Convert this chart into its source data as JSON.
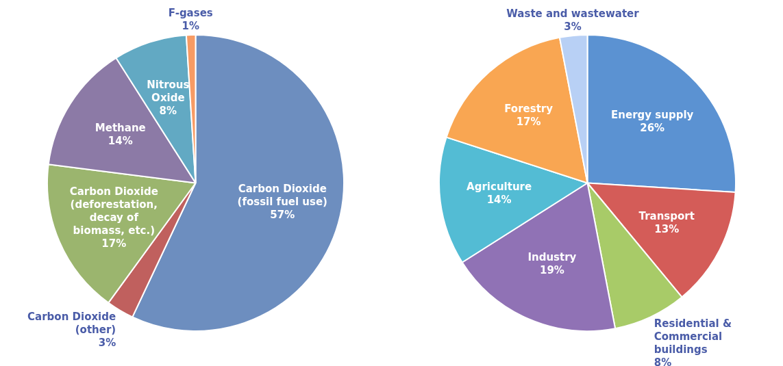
{
  "chart_data": [
    {
      "type": "pie",
      "categories": [
        "Carbon Dioxide (fossil fuel use)",
        "Carbon Dioxide (other)",
        "Carbon Dioxide (deforestation, decay of biomass, etc.)",
        "Methane",
        "Nitrous Oxide",
        "F-gases"
      ],
      "values": [
        57,
        3,
        17,
        14,
        8,
        1
      ],
      "value_labels": [
        "57%",
        "3%",
        "17%",
        "14%",
        "8%",
        "1%"
      ],
      "colors": [
        "#6d8ebf",
        "#c0605e",
        "#9bb56e",
        "#8c7aa6",
        "#62a9c3",
        "#f79b64"
      ],
      "legend": false
    },
    {
      "type": "pie",
      "categories": [
        "Energy supply",
        "Transport",
        "Residential & Commercial buildings",
        "Industry",
        "Agriculture",
        "Forestry",
        "Waste and wastewater"
      ],
      "values": [
        26,
        13,
        8,
        19,
        14,
        17,
        3
      ],
      "value_labels": [
        "26%",
        "13%",
        "8%",
        "19%",
        "14%",
        "17%",
        "3%"
      ],
      "colors": [
        "#5b92d2",
        "#d45c58",
        "#a8cb68",
        "#9072b5",
        "#53bcd4",
        "#f9a652",
        "#b8d0f5"
      ],
      "legend": false
    }
  ]
}
